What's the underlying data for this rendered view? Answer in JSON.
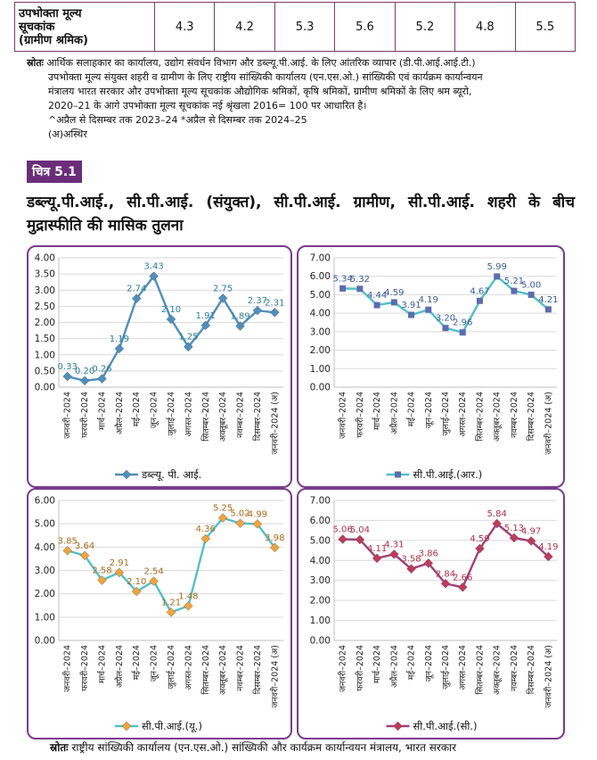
{
  "table_row": {
    "label_lines": [
      "उपभोक्ता मूल्य",
      "सूचकांक",
      "(ग्रामीण श्रमिक)"
    ],
    "values": [
      "4.3",
      "4.2",
      "5.3",
      "5.6",
      "5.2",
      "4.8",
      "5.5"
    ]
  },
  "source_note": {
    "label": "स्रोतः",
    "line1": "आर्थिक सलाहकार का कार्यालय, उद्योग संवर्धन विभाग और डब्ल्यू.पी.आई. के लिए आंतरिक व्यापार (डी.पी.आई.आई.टी.)",
    "line2": "उपभोक्ता मूल्य संयुक्त शहरी व ग्रामीण के लिए राष्ट्रीय सांख्यिकी कार्यालय (एन.एस.ओ.) सांख्यिकी एवं कार्यक्रम कार्यान्वयन",
    "line3": "मंत्रालय भारत सरकार और उपभोक्ता मूल्य सूचकांक औद्योगिक श्रमिकों, कृषि श्रमिकों, ग्रामीण श्रमिकों के लिए श्रम ब्यूरो,",
    "line4": "2020–21 के आगे उपभोक्ता मूल्य सूचकांक नई श्रृंखला 2016= 100 पर आधारित है।",
    "line5": "^अप्रैल से दिसम्बर तक 2023–24 *अप्रैल से दिसम्बर तक 2024–25",
    "line6": "(अ)अस्थिर"
  },
  "figure": {
    "badge": "चित्र 5.1",
    "title": "डब्ल्यू.पी.आई., सी.पी.आई. (संयुक्त), सी.पी.आई. ग्रामीण, सी.पी.आई. शहरी के बीच मुद्रास्फीति की मासिक तुलना"
  },
  "chart_data": [
    {
      "type": "line",
      "categories": [
        "जनवरी–2024",
        "फरवरी–2024",
        "मार्च–2024",
        "अप्रैल–2024",
        "मई–2024",
        "जून–2024",
        "जुलाई–2024",
        "अगस्त–2024",
        "सितम्बर–2024",
        "अक्तूबर–2024",
        "नवम्बर–2024",
        "दिसम्बर–2024",
        "जनवरी–2024 (अ)"
      ],
      "series": [
        {
          "name": "डब्ल्यू. पी. आई.",
          "values": [
            0.33,
            0.2,
            0.26,
            1.19,
            2.74,
            3.43,
            2.1,
            1.25,
            1.91,
            2.75,
            1.89,
            2.37,
            2.31
          ],
          "labels": [
            "0.33",
            "0.20",
            "0.26",
            "1.19",
            "2.74",
            "3.43",
            "2.10",
            "1.25",
            "1.91",
            "2.75",
            "1.89",
            "2.37",
            "2.31"
          ]
        }
      ],
      "ylim": [
        0,
        4
      ],
      "yticks": [
        "0.00",
        "0.50",
        "1.00",
        "1.50",
        "2.00",
        "2.50",
        "3.00",
        "3.50",
        "4.00"
      ],
      "line_color": "#4f8fbd",
      "marker_color": "#4f8fbd",
      "label_color": "#2e7d9a",
      "marker": "diamond"
    },
    {
      "type": "line",
      "categories": [
        "जनवरी–2024",
        "फरवरी–2024",
        "मार्च–2024",
        "अप्रैल–2024",
        "मई–2024",
        "जून–2024",
        "जुलाई–2024",
        "अगस्त–2024",
        "सितम्बर–2024",
        "अक्तूबर–2024",
        "नवम्बर–2024",
        "दिसम्बर–2024",
        "जनवरी–2024 (अ)"
      ],
      "series": [
        {
          "name": "सी.पी.आई.(आर.)",
          "values": [
            5.34,
            5.32,
            4.44,
            4.59,
            3.91,
            4.19,
            3.2,
            2.96,
            4.67,
            5.99,
            5.21,
            5.0,
            4.21
          ],
          "labels": [
            "5.34",
            "5.32",
            "4.44",
            "4.59",
            "3.91",
            "4.19",
            "3.20",
            "2.96",
            "4.67",
            "5.99",
            "5.21",
            "5.00",
            "4.21"
          ]
        }
      ],
      "ylim": [
        0,
        7
      ],
      "yticks": [
        "0.00",
        "1.00",
        "2.00",
        "3.00",
        "4.00",
        "5.00",
        "6.00",
        "7.00"
      ],
      "line_color": "#4fc1c9",
      "marker_color": "#5b6db0",
      "label_color": "#3a5a9a",
      "marker": "square"
    },
    {
      "type": "line",
      "categories": [
        "जनवरी–2024",
        "फरवरी–2024",
        "मार्च–2024",
        "अप्रैल–2024",
        "मई–2024",
        "जून–2024",
        "जुलाई–2024",
        "अगस्त–2024",
        "सितम्बर–2024",
        "अक्तूबर–2024",
        "नवम्बर–2024",
        "दिसम्बर–2024",
        "जनवरी–2024 (अ)"
      ],
      "series": [
        {
          "name": "सी.पी.आई.(यू.)",
          "values": [
            3.85,
            3.64,
            2.58,
            2.91,
            2.1,
            2.54,
            1.21,
            1.48,
            4.36,
            5.25,
            5.02,
            4.99,
            3.98
          ],
          "labels": [
            "3.85",
            "3.64",
            "2.58",
            "2.91",
            "2.10",
            "2.54",
            "1.21",
            "1.48",
            "4.36",
            "5.25",
            "5.02",
            "4.99",
            "3.98"
          ]
        }
      ],
      "ylim": [
        0,
        6
      ],
      "yticks": [
        "0.00",
        "1.00",
        "2.00",
        "3.00",
        "4.00",
        "5.00",
        "6.00"
      ],
      "line_color": "#4fc1c9",
      "marker_color": "#f2a33a",
      "label_color": "#a8691a",
      "marker": "diamond"
    },
    {
      "type": "line",
      "categories": [
        "जनवरी–2024",
        "फरवरी–2024",
        "मार्च–2024",
        "अप्रैल–2024",
        "मई–2024",
        "जून–2024",
        "जुलाई–2024",
        "अगस्त–2024",
        "सितम्बर–2024",
        "अक्तूबर–2024",
        "नवम्बर–2024",
        "दिसम्बर–2024",
        "जनवरी–2024 (अ)"
      ],
      "series": [
        {
          "name": "सी.पी.आई.(सी.)",
          "values": [
            5.06,
            5.04,
            4.11,
            4.31,
            3.58,
            3.86,
            2.84,
            2.66,
            4.59,
            5.84,
            5.13,
            4.97,
            4.19
          ],
          "labels": [
            "5.06",
            "5.04",
            "4.11",
            "4.31",
            "3.58",
            "3.86",
            "2.84",
            "2.66",
            "4.59",
            "5.84",
            "5.13",
            "4.97",
            "4.19"
          ]
        }
      ],
      "ylim": [
        0,
        7
      ],
      "yticks": [
        "0.00",
        "1.00",
        "2.00",
        "3.00",
        "4.00",
        "5.00",
        "6.00",
        "7.00"
      ],
      "line_color": "#a0407a",
      "marker_color": "#c03a5a",
      "label_color": "#b0304a",
      "marker": "diamond"
    }
  ],
  "bottom_source": {
    "label": "स्रोतः",
    "text": "राष्ट्रीय सांख्यिकी कार्यालय (एन.एस.ओ.) सांख्यिकी और कार्यक्रम कार्यान्वयन मंत्रालय, भारत सरकार"
  }
}
